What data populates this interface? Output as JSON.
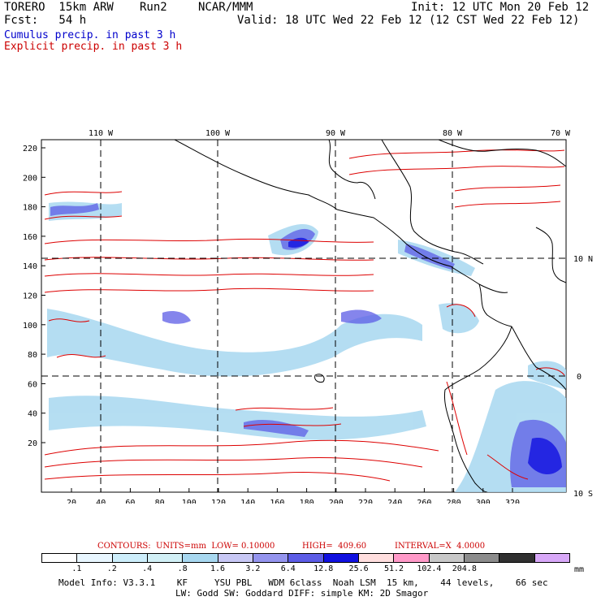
{
  "header": {
    "model": "TORERO  15km ARW",
    "run": "Run2",
    "org": "NCAR/MMM",
    "init": "Init: 12 UTC Mon 20 Feb 12",
    "fcst": "Fcst:   54 h",
    "valid": "Valid: 18 UTC Wed 22 Feb 12 (12 CST Wed 22 Feb 12)",
    "field1": "Cumulus precip. in past 3 h",
    "field2": "Explicit precip. in past 3 h"
  },
  "map": {
    "top_lon_labels": [
      "110 W",
      "100 W",
      "90 W",
      "80 W",
      "70 W"
    ],
    "right_lat_labels": [
      "10 N",
      "0",
      "10 S"
    ],
    "left_ticks": [
      "220",
      "200",
      "180",
      "160",
      "140",
      "120",
      "100",
      "80",
      "60",
      "40",
      "20"
    ],
    "bottom_ticks": [
      "20",
      "40",
      "60",
      "80",
      "100",
      "120",
      "140",
      "160",
      "180",
      "200",
      "220",
      "240",
      "260",
      "280",
      "300",
      "320"
    ]
  },
  "contours": {
    "label": "CONTOURS:  UNITS=mm  LOW= 0.10000",
    "high": "HIGH=  409.60",
    "interval": "INTERVAL=X  4.0000"
  },
  "legend": {
    "colors": [
      "#ffffff",
      "#e8f6ff",
      "#cdeefb",
      "#d2f0f6",
      "#a8d8f0",
      "#c8c8f5",
      "#9494ee",
      "#5c5ce6",
      "#1010e0",
      "#ffdede",
      "#ff99c8",
      "#c8c8c8",
      "#8c8c8c",
      "#303030",
      "#d8a8f8"
    ],
    "labels": [
      ".1",
      ".2",
      ".4",
      ".8",
      "1.6",
      "3.2",
      "6.4",
      "12.8",
      "25.6",
      "51.2",
      "102.4",
      "204.8"
    ],
    "units": "mm"
  },
  "footer": {
    "line1": "Model Info: V3.3.1    KF     YSU PBL   WDM 6class  Noah LSM  15 km,    44 levels,    66 sec",
    "line2": "LW: Godd SW: Goddard DIFF: simple KM: 2D Smagor"
  }
}
